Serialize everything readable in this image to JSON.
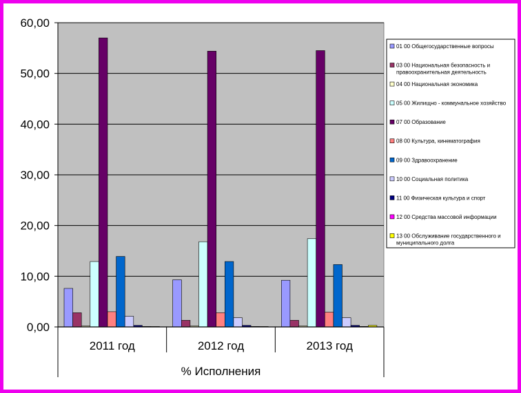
{
  "chart_data": {
    "type": "bar",
    "title": "",
    "xlabel": "% Исполнения",
    "ylabel": "",
    "ylim": [
      0,
      60
    ],
    "yticks": [
      "0,00",
      "10,00",
      "20,00",
      "30,00",
      "40,00",
      "50,00",
      "60,00"
    ],
    "grid": true,
    "legend_position": "right",
    "plot_background": "#c0c0c0",
    "frame_color": "#ee00ee",
    "categories": [
      "2011 год",
      "2012 год",
      "2013 год"
    ],
    "series": [
      {
        "name": "01 00 Общегосударственные вопросы",
        "color": "#9999ff",
        "values": [
          7.6,
          9.3,
          9.2
        ]
      },
      {
        "name": "03 00 Национальная безопасность и правоохранительная деятельность",
        "color": "#993366",
        "values": [
          2.8,
          1.3,
          1.3
        ]
      },
      {
        "name": "04 00 Национальная экономика",
        "color": "#ffffcc",
        "values": [
          0.2,
          0.2,
          0.2
        ]
      },
      {
        "name": "05 00 Жилищно - коммунальное хозяйство",
        "color": "#ccffff",
        "values": [
          12.9,
          16.8,
          17.4
        ]
      },
      {
        "name": "07 00 Образование",
        "color": "#660066",
        "values": [
          57.0,
          54.4,
          54.5
        ]
      },
      {
        "name": "08 00 Культура, кинематография",
        "color": "#ff8080",
        "values": [
          3.0,
          2.8,
          2.9
        ]
      },
      {
        "name": "09 00 Здравоохранение",
        "color": "#0066cc",
        "values": [
          13.9,
          12.9,
          12.3
        ]
      },
      {
        "name": "10 00 Социальная политика",
        "color": "#ccccff",
        "values": [
          2.1,
          1.8,
          1.8
        ]
      },
      {
        "name": "11 00 Физическая культура и спорт",
        "color": "#000080",
        "values": [
          0.3,
          0.3,
          0.3
        ]
      },
      {
        "name": "12 00 Средства массовой информации",
        "color": "#ff00ff",
        "values": [
          0.1,
          0.1,
          0.1
        ]
      },
      {
        "name": "13 00 Обслуживание государственного и муниципального долга",
        "color": "#ffff00",
        "values": [
          0.0,
          0.0,
          0.3
        ]
      }
    ]
  }
}
